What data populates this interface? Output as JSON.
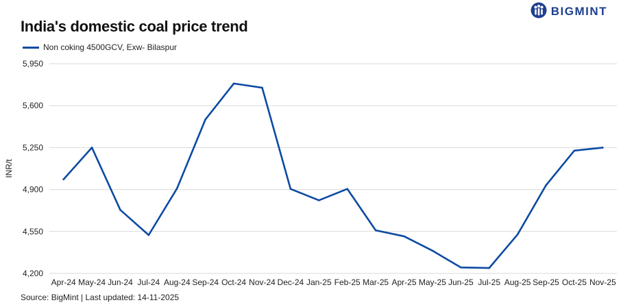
{
  "header": {
    "title": "India's domestic coal price trend",
    "brand": "BIGMINT",
    "brand_icon": "bigmint-logo-icon"
  },
  "footer": {
    "source": "Source: BigMint | Last updated: 14-11-2025"
  },
  "colors": {
    "series_line": "#0b4aa2",
    "grid": "#d9d9d9",
    "brand": "#1f3f8f"
  },
  "chart_data": {
    "type": "line",
    "title": "India's domestic coal price trend",
    "xlabel": "",
    "ylabel": "INR/t",
    "ylim": [
      4200,
      5950
    ],
    "yticks": [
      4200,
      4550,
      4900,
      5250,
      5600,
      5950
    ],
    "ytick_labels": [
      "4,200",
      "4,550",
      "4,900",
      "5,250",
      "5,600",
      "5,950"
    ],
    "grid": true,
    "legend_position": "top-left",
    "categories": [
      "Apr-24",
      "May-24",
      "Jun-24",
      "Jul-24",
      "Aug-24",
      "Sep-24",
      "Oct-24",
      "Nov-24",
      "Dec-24",
      "Jan-25",
      "Feb-25",
      "Mar-25",
      "Apr-25",
      "May-25",
      "Jun-25",
      "Jul-25",
      "Aug-25",
      "Sep-25",
      "Oct-25",
      "Nov-25"
    ],
    "series": [
      {
        "name": "Non coking 4500GCV, Exw- Bilaspur",
        "values": [
          4985,
          5250,
          4730,
          4520,
          4910,
          5485,
          5785,
          5750,
          4905,
          4810,
          4905,
          4560,
          4510,
          4390,
          4250,
          4245,
          4525,
          4935,
          5225,
          5250
        ]
      }
    ]
  }
}
